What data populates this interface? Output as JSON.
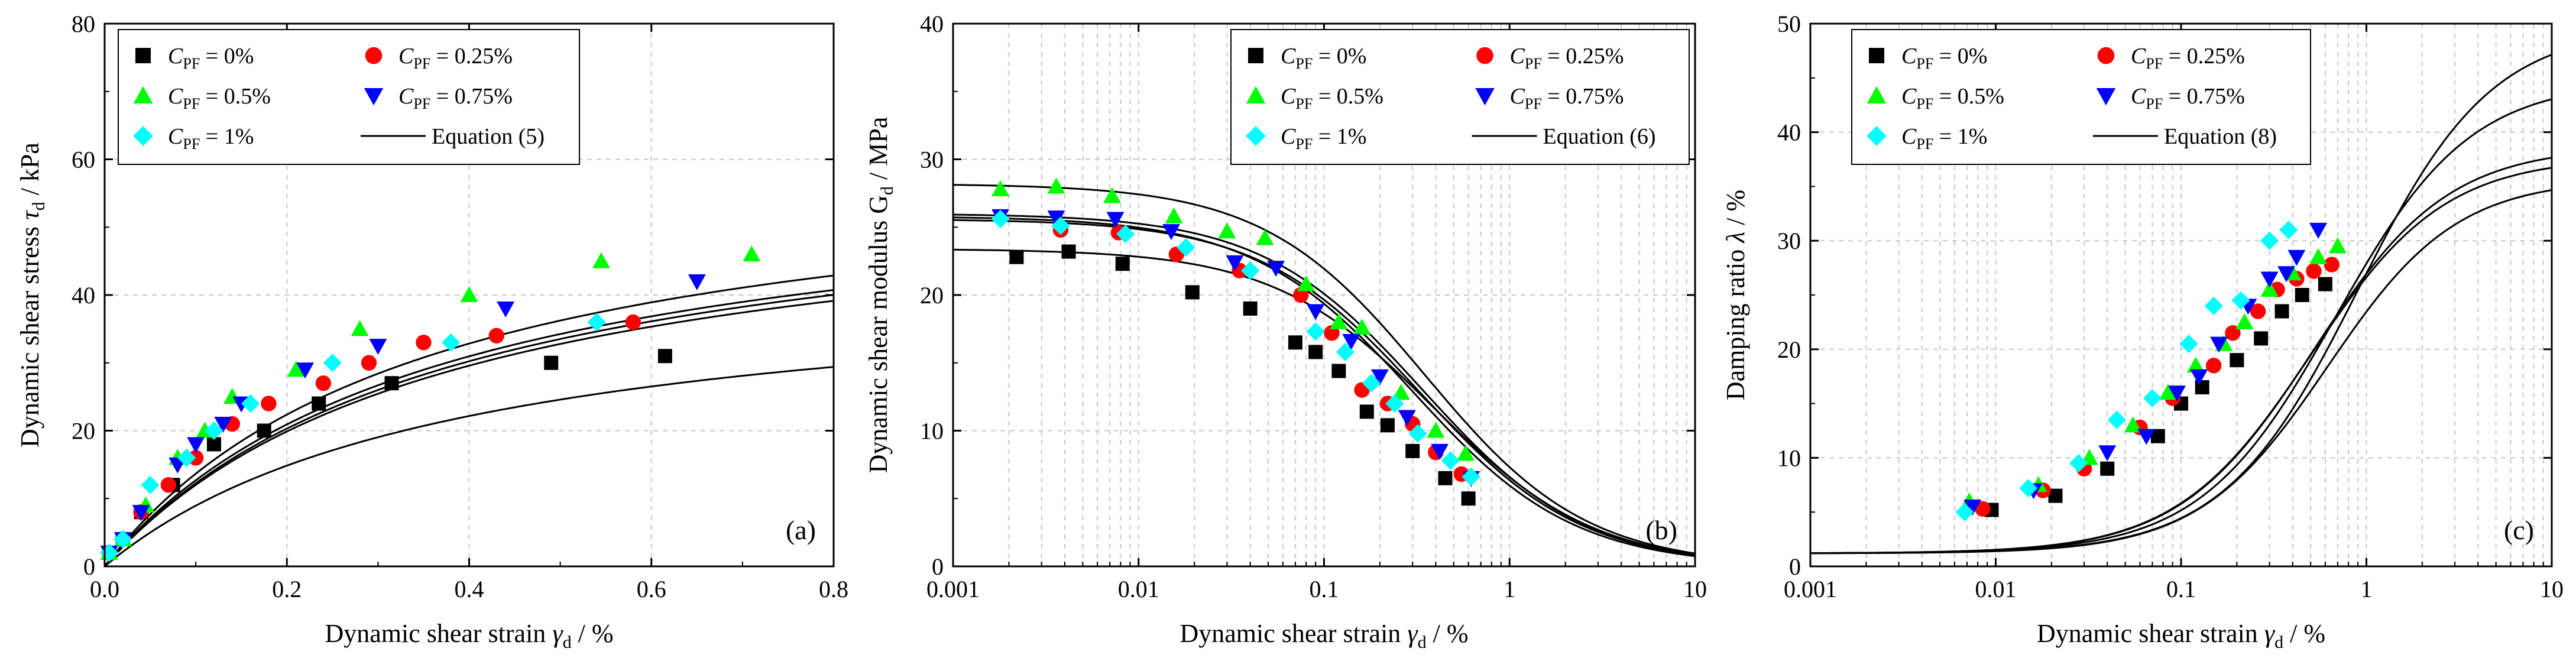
{
  "legend": {
    "entries": [
      {
        "name": "cpf-0",
        "prefix": "C",
        "sub": "PF",
        "value": " = 0%",
        "marker": "square",
        "color": "#000000"
      },
      {
        "name": "cpf-025",
        "prefix": "C",
        "sub": "PF",
        "value": " = 0.25%",
        "marker": "circle",
        "color": "#ff0000"
      },
      {
        "name": "cpf-05",
        "prefix": "C",
        "sub": "PF",
        "value": " = 0.5%",
        "marker": "triangle-up",
        "color": "#00ff00"
      },
      {
        "name": "cpf-075",
        "prefix": "C",
        "sub": "PF",
        "value": " = 0.75%",
        "marker": "triangle-down",
        "color": "#0000ff"
      },
      {
        "name": "cpf-1",
        "prefix": "C",
        "sub": "PF",
        "value": " = 1%",
        "marker": "diamond",
        "color": "#00ffff"
      }
    ]
  },
  "chart_data": [
    {
      "id": "a",
      "type": "scatter",
      "panel_label": "(a)",
      "x_scale": "linear",
      "xlim": [
        0,
        0.8
      ],
      "ylim": [
        0,
        80
      ],
      "xticks": [
        0,
        0.2,
        0.4,
        0.6,
        0.8
      ],
      "xtick_labels": [
        "0.0",
        "0.2",
        "0.4",
        "0.6",
        "0.8"
      ],
      "yticks": [
        0,
        20,
        40,
        60,
        80
      ],
      "ytick_labels": [
        "0",
        "20",
        "40",
        "60",
        "80"
      ],
      "xlabel": {
        "pre": "Dynamic shear strain ",
        "sym": "γ",
        "sub": "d",
        "post": " / %"
      },
      "ylabel": {
        "pre": "Dynamic shear stress ",
        "sym": "τ",
        "sub": "d",
        "post": " / kPa"
      },
      "legend_position": "top-left",
      "equation_label": "Equation (5)",
      "fit": {
        "form": "hyperbolic",
        "x_range": [
          0.001,
          0.8
        ],
        "params": [
          [
            0.00889,
            0.0229
          ],
          [
            0.00647,
            0.0169
          ],
          [
            0.0057,
            0.0162
          ],
          [
            0.0062,
            0.0168
          ],
          [
            0.0066,
            0.0173
          ]
        ]
      },
      "series": [
        {
          "name": "C_PF = 0%",
          "x": [
            0.005,
            0.02,
            0.04,
            0.075,
            0.12,
            0.175,
            0.235,
            0.315,
            0.49,
            0.615
          ],
          "y": [
            2,
            4,
            8,
            12,
            18,
            20,
            24,
            27,
            30,
            31
          ]
        },
        {
          "name": "C_PF = 0.25%",
          "x": [
            0.005,
            0.02,
            0.04,
            0.07,
            0.1,
            0.14,
            0.18,
            0.24,
            0.29,
            0.35,
            0.43,
            0.58
          ],
          "y": [
            2,
            4,
            8,
            12,
            16,
            21,
            24,
            27,
            30,
            33,
            34,
            36
          ]
        },
        {
          "name": "C_PF = 0.5%",
          "x": [
            0.005,
            0.02,
            0.045,
            0.08,
            0.11,
            0.14,
            0.21,
            0.28,
            0.4,
            0.545,
            0.71
          ],
          "y": [
            2,
            4,
            9,
            16,
            20,
            25,
            29,
            35,
            40,
            45,
            46
          ]
        },
        {
          "name": "C_PF = 0.75%",
          "x": [
            0.005,
            0.02,
            0.04,
            0.08,
            0.1,
            0.13,
            0.15,
            0.22,
            0.3,
            0.44,
            0.65
          ],
          "y": [
            2,
            4,
            8,
            15,
            18,
            21,
            24,
            29,
            32.5,
            38,
            42
          ]
        },
        {
          "name": "C_PF = 1%",
          "x": [
            0.005,
            0.02,
            0.05,
            0.09,
            0.12,
            0.16,
            0.25,
            0.38,
            0.54
          ],
          "y": [
            2,
            4,
            12,
            16,
            20,
            24,
            30,
            33,
            36
          ]
        }
      ]
    },
    {
      "id": "b",
      "type": "scatter",
      "panel_label": "(b)",
      "x_scale": "log",
      "xlim": [
        0.001,
        10
      ],
      "ylim": [
        0,
        40
      ],
      "xticks": [
        0.001,
        0.01,
        0.1,
        1,
        10
      ],
      "xtick_labels": [
        "0.001",
        "0.01",
        "0.1",
        "1",
        "10"
      ],
      "yticks": [
        0,
        10,
        20,
        30,
        40
      ],
      "ytick_labels": [
        "0",
        "10",
        "20",
        "30",
        "40"
      ],
      "xlabel": {
        "pre": "Dynamic shear strain ",
        "sym": "γ",
        "sub": "d",
        "post": " / %"
      },
      "ylabel": {
        "pre": "Dynamic shear modulus G",
        "sym": "",
        "sub": "d",
        "post": " / MPa"
      },
      "legend_position": "top-right",
      "equation_label": "Equation (6)",
      "fit": {
        "form": "modulus",
        "x_range": [
          0.001,
          10
        ],
        "params": [
          [
            23.4,
            0.39
          ],
          [
            25.6,
            0.33
          ],
          [
            28.2,
            0.35
          ],
          [
            26.0,
            0.34
          ],
          [
            25.8,
            0.3
          ]
        ]
      },
      "series": [
        {
          "name": "C_PF = 0%",
          "x": [
            0.0022,
            0.0042,
            0.0082,
            0.0195,
            0.04,
            0.07,
            0.09,
            0.12,
            0.17,
            0.22,
            0.3,
            0.45,
            0.6
          ],
          "y": [
            22.8,
            23.2,
            22.3,
            20.2,
            19.0,
            16.5,
            15.8,
            14.4,
            11.4,
            10.4,
            8.5,
            6.5,
            5.0
          ]
        },
        {
          "name": "C_PF = 0.25%",
          "x": [
            0.0038,
            0.0078,
            0.016,
            0.035,
            0.075,
            0.11,
            0.16,
            0.22,
            0.3,
            0.4,
            0.55
          ],
          "y": [
            24.8,
            24.6,
            23.0,
            21.8,
            20.0,
            17.2,
            13.0,
            12.0,
            10.5,
            8.4,
            6.8
          ]
        },
        {
          "name": "C_PF = 0.5%",
          "x": [
            0.0018,
            0.0036,
            0.0072,
            0.0155,
            0.03,
            0.048,
            0.08,
            0.12,
            0.16,
            0.26,
            0.4,
            0.58
          ],
          "y": [
            27.8,
            28.0,
            27.3,
            25.8,
            24.7,
            24.2,
            20.8,
            18.0,
            17.6,
            12.8,
            10.0,
            8.3
          ]
        },
        {
          "name": "C_PF = 0.75%",
          "x": [
            0.0018,
            0.0036,
            0.0075,
            0.015,
            0.033,
            0.055,
            0.09,
            0.14,
            0.2,
            0.28,
            0.42,
            0.62
          ],
          "y": [
            25.8,
            25.7,
            25.6,
            24.7,
            22.4,
            22.0,
            18.8,
            16.6,
            14.0,
            11.0,
            8.5,
            6.5
          ]
        },
        {
          "name": "C_PF = 1%",
          "x": [
            0.0018,
            0.0038,
            0.0085,
            0.018,
            0.04,
            0.09,
            0.13,
            0.18,
            0.24,
            0.32,
            0.48,
            0.62
          ],
          "y": [
            25.6,
            25.1,
            24.5,
            23.5,
            21.8,
            17.3,
            15.8,
            13.5,
            12.0,
            9.8,
            7.8,
            6.6
          ]
        }
      ]
    },
    {
      "id": "c",
      "type": "scatter",
      "panel_label": "(c)",
      "x_scale": "log",
      "xlim": [
        0.001,
        10
      ],
      "ylim": [
        0,
        50
      ],
      "xticks": [
        0.001,
        0.01,
        0.1,
        1,
        10
      ],
      "xtick_labels": [
        "0.001",
        "0.01",
        "0.1",
        "1",
        "10"
      ],
      "yticks": [
        0,
        10,
        20,
        30,
        40,
        50
      ],
      "ytick_labels": [
        "0",
        "10",
        "20",
        "30",
        "40",
        "50"
      ],
      "xlabel": {
        "pre": "Dynamic shear strain ",
        "sym": "γ",
        "sub": "d",
        "post": " / %"
      },
      "ylabel": {
        "pre": "Damping ratio ",
        "sym": "λ",
        "sub": "",
        "post": " / %"
      },
      "legend_position": "top",
      "equation_label": "Equation (8)",
      "fit": {
        "form": "damping",
        "x_range": [
          0.001,
          10
        ],
        "params": [
          [
            1.2,
            34.5,
            0.62,
            1.25
          ],
          [
            1.2,
            36.5,
            0.5,
            1.2
          ],
          [
            1.2,
            37.5,
            0.52,
            1.2
          ],
          [
            1.2,
            43.5,
            0.68,
            1.2
          ],
          [
            1.2,
            48.5,
            0.9,
            1.2
          ]
        ]
      },
      "series": [
        {
          "name": "C_PF = 0%",
          "x": [
            0.0095,
            0.021,
            0.04,
            0.075,
            0.1,
            0.13,
            0.2,
            0.27,
            0.35,
            0.45,
            0.6
          ],
          "y": [
            5.2,
            6.5,
            9.0,
            12.0,
            15.0,
            16.5,
            19.0,
            21.0,
            23.5,
            25.0,
            26.0
          ]
        },
        {
          "name": "C_PF = 0.25%",
          "x": [
            0.0085,
            0.018,
            0.03,
            0.06,
            0.09,
            0.15,
            0.19,
            0.26,
            0.33,
            0.42,
            0.52,
            0.65
          ],
          "y": [
            5.3,
            7.0,
            9.0,
            12.8,
            15.5,
            18.5,
            21.5,
            23.5,
            25.5,
            26.5,
            27.2,
            27.8
          ]
        },
        {
          "name": "C_PF = 0.5%",
          "x": [
            0.0072,
            0.017,
            0.032,
            0.055,
            0.085,
            0.12,
            0.17,
            0.22,
            0.3,
            0.4,
            0.55,
            0.7
          ],
          "y": [
            6.0,
            7.5,
            10.0,
            13.0,
            16.0,
            18.5,
            20.5,
            22.5,
            25.5,
            27.0,
            28.5,
            29.5
          ]
        },
        {
          "name": "C_PF = 0.75%",
          "x": [
            0.0075,
            0.016,
            0.04,
            0.065,
            0.095,
            0.125,
            0.16,
            0.23,
            0.3,
            0.37,
            0.42,
            0.55
          ],
          "y": [
            5.5,
            7.0,
            10.5,
            12.0,
            16.0,
            17.5,
            20.5,
            24.0,
            26.5,
            27.0,
            28.5,
            31.0
          ]
        },
        {
          "name": "C_PF = 1%",
          "x": [
            0.0068,
            0.015,
            0.028,
            0.045,
            0.07,
            0.11,
            0.15,
            0.21,
            0.3,
            0.38
          ],
          "y": [
            5.0,
            7.2,
            9.5,
            13.5,
            15.5,
            20.5,
            24.0,
            24.5,
            30.0,
            31.0
          ]
        }
      ]
    }
  ]
}
